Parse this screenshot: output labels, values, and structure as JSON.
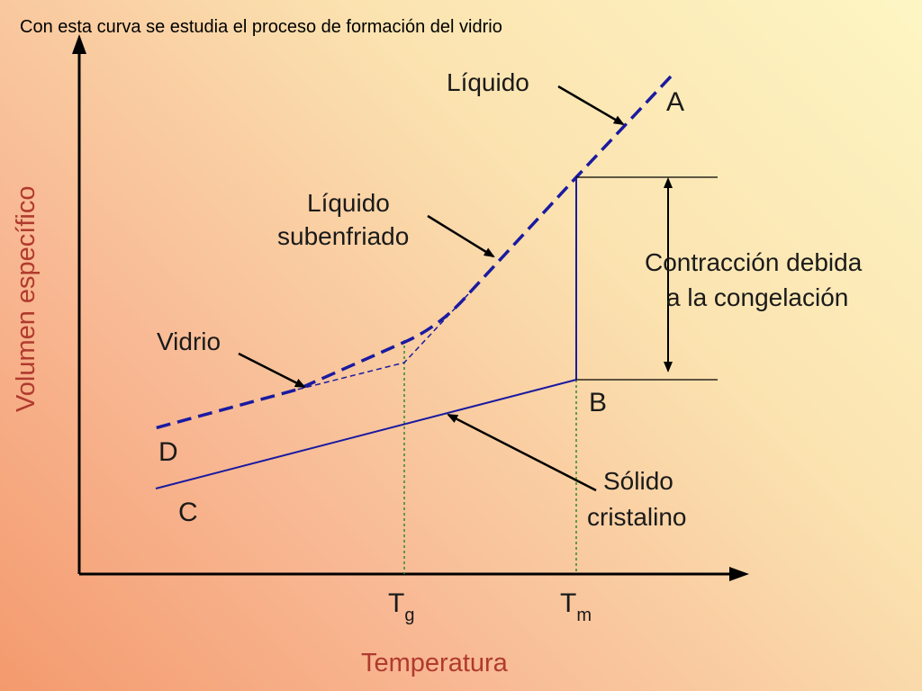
{
  "caption": "Con esta curva se estudia el proceso de formación del vidrio",
  "axes": {
    "x_title": "Temperatura",
    "y_title": "Volumen específico",
    "ticks": {
      "tg": {
        "main": "T",
        "sub": "g"
      },
      "tm": {
        "main": "T",
        "sub": "m"
      }
    }
  },
  "points": {
    "a": "A",
    "b": "B",
    "c": "C",
    "d": "D"
  },
  "annotations": {
    "liquido": "Líquido",
    "liquido_subenfriado_1": "Líquido",
    "liquido_subenfriado_2": "subenfriado",
    "vidrio": "Vidrio",
    "solido_1": "Sólido",
    "solido_2": "cristalino",
    "contraccion_1": "Contracción debida",
    "contraccion_2": "a la congelación"
  },
  "colors": {
    "curve": "#1a1aa0",
    "guide": "#2e8b2e",
    "axis": "#000000",
    "axis_title": "#b03a2e"
  }
}
